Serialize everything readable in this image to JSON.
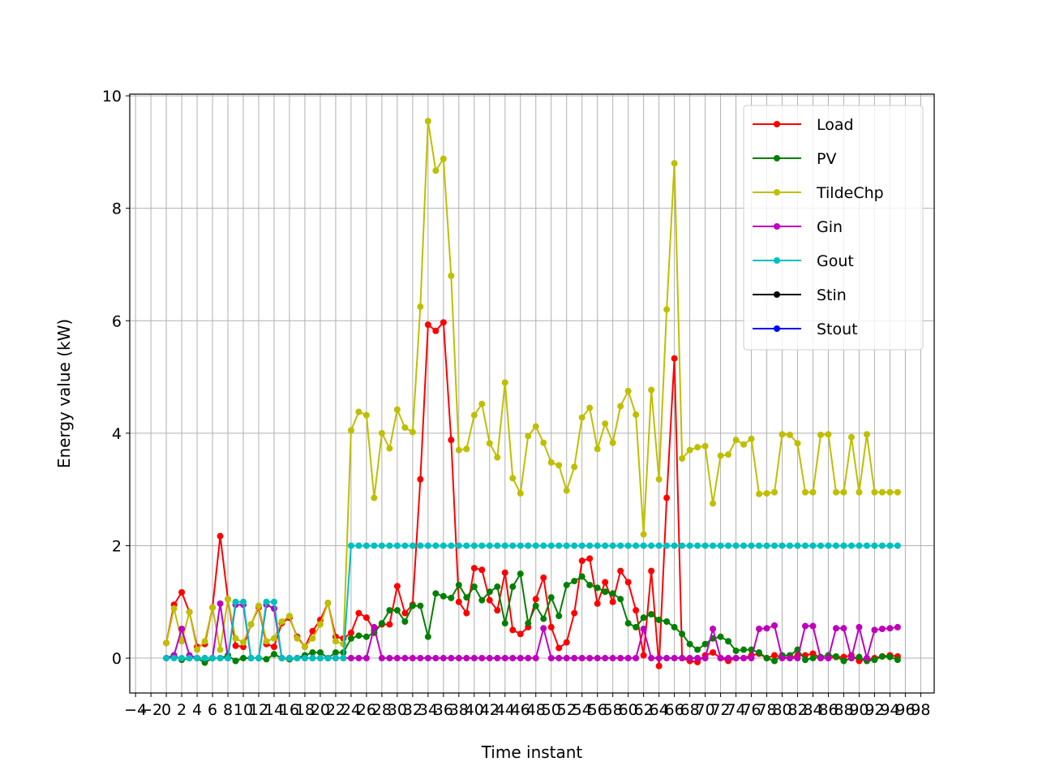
{
  "chart_data": {
    "type": "line",
    "xlabel": "Time instant",
    "ylabel": "Energy value (kW)",
    "x": [
      0,
      1,
      2,
      3,
      4,
      5,
      6,
      7,
      8,
      9,
      10,
      11,
      12,
      13,
      14,
      15,
      16,
      17,
      18,
      19,
      20,
      21,
      22,
      23,
      24,
      25,
      26,
      27,
      28,
      29,
      30,
      31,
      32,
      33,
      34,
      35,
      36,
      37,
      38,
      39,
      40,
      41,
      42,
      43,
      44,
      45,
      46,
      47,
      48,
      49,
      50,
      51,
      52,
      53,
      54,
      55,
      56,
      57,
      58,
      59,
      60,
      61,
      62,
      63,
      64,
      65,
      66,
      67,
      68,
      69,
      70,
      71,
      72,
      73,
      74,
      75,
      76,
      77,
      78,
      79,
      80,
      81,
      82,
      83,
      84,
      85,
      86,
      87,
      88,
      89,
      90,
      91,
      92,
      93,
      94,
      95
    ],
    "series": [
      {
        "name": "Load",
        "color": "#ff0000",
        "values": [
          0.27,
          0.95,
          1.17,
          0.82,
          0.2,
          0.25,
          0.9,
          2.17,
          1.05,
          0.22,
          0.2,
          0.6,
          0.9,
          0.25,
          0.2,
          0.62,
          0.72,
          0.38,
          0.2,
          0.48,
          0.68,
          0.98,
          0.38,
          0.35,
          0.45,
          0.8,
          0.72,
          0.5,
          0.6,
          0.6,
          1.28,
          0.8,
          0.95,
          3.18,
          5.93,
          5.82,
          5.97,
          3.88,
          1.0,
          0.8,
          1.6,
          1.57,
          1.03,
          0.85,
          1.52,
          0.5,
          0.43,
          0.55,
          1.05,
          1.43,
          0.55,
          0.18,
          0.28,
          0.8,
          1.73,
          1.77,
          0.97,
          1.35,
          1.0,
          1.55,
          1.35,
          0.85,
          0.05,
          1.55,
          -0.14,
          2.85,
          5.33,
          0,
          -0.05,
          -0.07,
          0.05,
          0.1,
          0,
          -0.05,
          0,
          0,
          0.05,
          0.08,
          0,
          0.05,
          0.02,
          0,
          0.05,
          0.05,
          0.08,
          0,
          0,
          0.02,
          0.02,
          0.05,
          -0.05,
          -0.02,
          0,
          0.03,
          0.05,
          0.03
        ]
      },
      {
        "name": "PV",
        "color": "#008000",
        "values": [
          0,
          0.05,
          -0.03,
          0,
          0,
          -0.08,
          0,
          0,
          0.05,
          -0.05,
          0,
          0,
          0,
          -0.02,
          0.07,
          0,
          -0.02,
          0,
          0.05,
          0.1,
          0.1,
          0,
          0.1,
          0.1,
          0.35,
          0.4,
          0.38,
          0.45,
          0.62,
          0.85,
          0.85,
          0.65,
          0.93,
          0.93,
          0.38,
          1.15,
          1.1,
          1.07,
          1.3,
          1.08,
          1.27,
          1.03,
          1.18,
          1.27,
          0.62,
          1.27,
          1.5,
          0.62,
          0.93,
          0.7,
          1.08,
          0.75,
          1.3,
          1.37,
          1.45,
          1.3,
          1.25,
          1.18,
          1.15,
          1.05,
          0.62,
          0.55,
          0.72,
          0.78,
          0.68,
          0.65,
          0.55,
          0.43,
          0.25,
          0.15,
          0.25,
          0.35,
          0.38,
          0.3,
          0.13,
          0.15,
          0.15,
          0.1,
          0,
          -0.05,
          0.05,
          0.05,
          0.15,
          -0.03,
          0,
          0.02,
          0.05,
          0.03,
          -0.05,
          0,
          0.02,
          -0.05,
          -0.03,
          0.03,
          0.02,
          -0.03
        ]
      },
      {
        "name": "TildeChp",
        "color": "#bfbf00",
        "values": [
          0.27,
          0.88,
          0.3,
          0.82,
          0.15,
          0.3,
          0.9,
          0.15,
          1.05,
          0.35,
          0.28,
          0.6,
          0.93,
          0.3,
          0.35,
          0.65,
          0.75,
          0.35,
          0.2,
          0.35,
          0.6,
          0.98,
          0.3,
          0.25,
          4.05,
          4.38,
          4.32,
          2.85,
          4.0,
          3.73,
          4.42,
          4.1,
          4.02,
          6.25,
          9.55,
          8.67,
          8.88,
          6.8,
          3.7,
          3.72,
          4.32,
          4.52,
          3.82,
          3.57,
          4.9,
          3.2,
          2.93,
          3.95,
          4.12,
          3.83,
          3.48,
          3.43,
          2.98,
          3.4,
          4.28,
          4.45,
          3.72,
          4.17,
          3.83,
          4.48,
          4.75,
          4.33,
          2.2,
          4.77,
          3.18,
          6.2,
          8.8,
          3.55,
          3.7,
          3.75,
          3.77,
          2.75,
          3.6,
          3.62,
          3.88,
          3.8,
          3.9,
          2.92,
          2.93,
          2.95,
          3.98,
          3.97,
          3.82,
          2.95,
          2.95,
          3.97,
          3.98,
          2.95,
          2.95,
          3.93,
          2.95,
          3.98,
          2.95,
          2.95,
          2.95,
          2.95
        ]
      },
      {
        "name": "Gin",
        "color": "#bf00bf",
        "values": [
          0,
          0.05,
          0.52,
          0.05,
          0,
          0,
          0,
          0.97,
          0,
          0.95,
          0.95,
          0,
          0,
          0.95,
          0.88,
          0,
          0,
          0,
          0,
          0,
          0,
          0,
          0,
          0,
          0,
          0,
          0,
          0.55,
          0,
          0,
          0,
          0,
          0,
          0,
          0,
          0,
          0,
          0,
          0,
          0,
          0,
          0,
          0,
          0,
          0,
          0,
          0,
          0,
          0,
          0.53,
          0,
          0,
          0,
          0,
          0,
          0,
          0,
          0,
          0,
          0,
          0,
          0,
          0.52,
          0,
          0,
          0,
          0,
          0,
          0,
          0,
          0,
          0.52,
          0,
          0,
          0,
          0,
          0,
          0.52,
          0.53,
          0.58,
          0,
          0,
          0,
          0.57,
          0.57,
          0,
          0,
          0.53,
          0.53,
          0,
          0.55,
          0,
          0.5,
          0.52,
          0.53,
          0.55
        ]
      },
      {
        "name": "Gout",
        "color": "#00bfbf",
        "values": [
          0,
          0,
          0,
          0,
          0,
          0,
          0,
          0,
          0,
          1.0,
          1.0,
          0,
          0,
          1.0,
          1.0,
          0,
          0,
          0,
          0,
          0,
          0,
          0,
          0,
          0,
          2,
          2,
          2,
          2,
          2,
          2,
          2,
          2,
          2,
          2,
          2,
          2,
          2,
          2,
          2,
          2,
          2,
          2,
          2,
          2,
          2,
          2,
          2,
          2,
          2,
          2,
          2,
          2,
          2,
          2,
          2,
          2,
          2,
          2,
          2,
          2,
          2,
          2,
          2,
          2,
          2,
          2,
          2,
          2,
          2,
          2,
          2,
          2,
          2,
          2,
          2,
          2,
          2,
          2,
          2,
          2,
          2,
          2,
          2,
          2,
          2,
          2,
          2,
          2,
          2,
          2,
          2,
          2,
          2,
          2,
          2,
          2
        ]
      },
      {
        "name": "Stin",
        "color": "#000000",
        "values": [
          null,
          null,
          null,
          null,
          null,
          null,
          null,
          null,
          null,
          null,
          null,
          null,
          null,
          null,
          null,
          null,
          null,
          null,
          null,
          null,
          null,
          null,
          null,
          null,
          null,
          null,
          null,
          null,
          null,
          null,
          null,
          null,
          null,
          null,
          null,
          null,
          null,
          null,
          null,
          null,
          null,
          null,
          null,
          null,
          null,
          null,
          null,
          null,
          null,
          null,
          null,
          null,
          null,
          null,
          null,
          null,
          null,
          null,
          null,
          null,
          null,
          null,
          null,
          null,
          null,
          null,
          null,
          null,
          null,
          null,
          null,
          null,
          null,
          null,
          null,
          null,
          null,
          null,
          null,
          null,
          null,
          null,
          null,
          null,
          null,
          null,
          null,
          null,
          null,
          null,
          null,
          null,
          null,
          null,
          null,
          null
        ]
      },
      {
        "name": "Stout",
        "color": "#0000ff",
        "values": [
          null,
          null,
          null,
          null,
          null,
          null,
          null,
          null,
          null,
          null,
          null,
          null,
          null,
          null,
          null,
          null,
          null,
          null,
          null,
          null,
          null,
          null,
          null,
          null,
          null,
          null,
          null,
          null,
          null,
          null,
          null,
          null,
          null,
          null,
          null,
          null,
          null,
          null,
          null,
          null,
          null,
          null,
          null,
          null,
          null,
          null,
          null,
          null,
          null,
          null,
          null,
          null,
          null,
          null,
          null,
          null,
          null,
          null,
          null,
          null,
          null,
          null,
          null,
          null,
          null,
          null,
          null,
          null,
          null,
          null,
          null,
          null,
          null,
          null,
          null,
          null,
          null,
          null,
          null,
          null,
          null,
          null,
          null,
          null,
          null,
          null,
          null,
          null,
          null,
          null,
          null,
          null,
          null,
          null,
          null,
          null
        ]
      }
    ],
    "xlim": [
      -4.75,
      99.75
    ],
    "xticks": [
      {
        "value": -4,
        "label": "−4"
      },
      {
        "value": -2,
        "label": "−2"
      },
      0,
      2,
      4,
      6,
      8,
      10,
      12,
      14,
      16,
      18,
      20,
      22,
      24,
      26,
      28,
      30,
      32,
      34,
      36,
      38,
      40,
      42,
      44,
      46,
      48,
      50,
      52,
      54,
      56,
      58,
      60,
      62,
      64,
      66,
      68,
      70,
      72,
      74,
      76,
      78,
      80,
      82,
      84,
      86,
      88,
      90,
      92,
      94,
      96,
      98
    ],
    "ylim": [
      -0.62,
      10.03
    ],
    "yticks": [
      0,
      2,
      4,
      6,
      8,
      10
    ],
    "grid": true,
    "legend": "upper right"
  }
}
